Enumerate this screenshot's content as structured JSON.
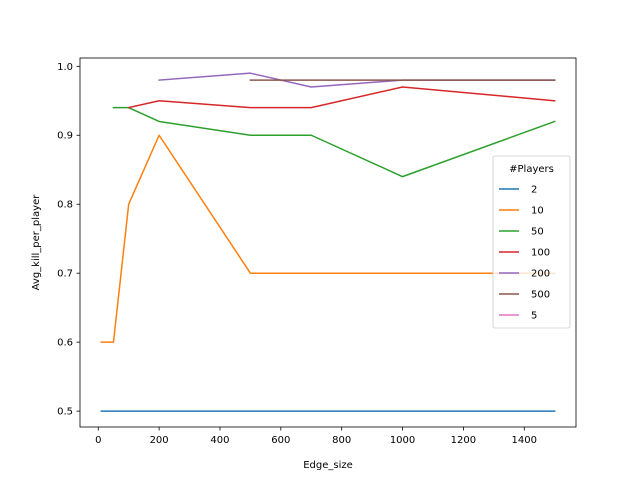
{
  "chart_data": {
    "type": "line",
    "title": "",
    "xlabel": "Edge_size",
    "ylabel": "Avg_kill_per_player",
    "xlim": [
      -60,
      1570
    ],
    "ylim": [
      0.477,
      1.012
    ],
    "xticks": [
      0,
      200,
      400,
      600,
      800,
      1000,
      1200,
      1400
    ],
    "yticks": [
      0.5,
      0.6,
      0.7,
      0.8,
      0.9,
      1.0
    ],
    "ytick_labels": [
      "0.5",
      "0.6",
      "0.7",
      "0.8",
      "0.9",
      "1.0"
    ],
    "grid": false,
    "legend": {
      "title": "#Players",
      "placement": "right"
    },
    "series": [
      {
        "name": "2",
        "color": "#1f77b4",
        "points": [
          [
            10,
            0.5
          ],
          [
            1500,
            0.5
          ]
        ]
      },
      {
        "name": "10",
        "color": "#ff7f0e",
        "points": [
          [
            10,
            0.6
          ],
          [
            50,
            0.6
          ],
          [
            100,
            0.8
          ],
          [
            200,
            0.9
          ],
          [
            500,
            0.7
          ],
          [
            700,
            0.7
          ],
          [
            1000,
            0.7
          ],
          [
            1500,
            0.7
          ]
        ]
      },
      {
        "name": "50",
        "color": "#2ca02c",
        "points": [
          [
            50,
            0.94
          ],
          [
            100,
            0.94
          ],
          [
            200,
            0.92
          ],
          [
            500,
            0.9
          ],
          [
            700,
            0.9
          ],
          [
            1000,
            0.84
          ],
          [
            1500,
            0.92
          ]
        ]
      },
      {
        "name": "100",
        "color": "#d62728",
        "points": [
          [
            100,
            0.94
          ],
          [
            200,
            0.95
          ],
          [
            500,
            0.94
          ],
          [
            700,
            0.94
          ],
          [
            1000,
            0.97
          ],
          [
            1500,
            0.95
          ]
        ]
      },
      {
        "name": "200",
        "color": "#9467bd",
        "points": [
          [
            200,
            0.98
          ],
          [
            500,
            0.99
          ],
          [
            700,
            0.97
          ],
          [
            1000,
            0.98
          ],
          [
            1500,
            0.98
          ]
        ]
      },
      {
        "name": "500",
        "color": "#8c564b",
        "points": [
          [
            500,
            0.98
          ],
          [
            700,
            0.98
          ],
          [
            1000,
            0.98
          ],
          [
            1500,
            0.98
          ]
        ]
      },
      {
        "name": "5",
        "color": "#e377c2",
        "points": []
      }
    ]
  }
}
